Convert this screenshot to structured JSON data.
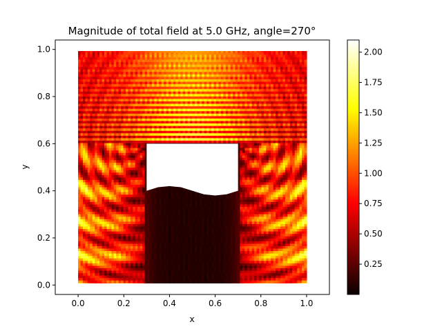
{
  "chart_data": {
    "type": "heatmap",
    "title": "Magnitude of total field at 5.0 GHz, angle=270°",
    "xlabel": "x",
    "ylabel": "y",
    "xlim": [
      -0.1,
      1.1
    ],
    "ylim": [
      -0.04,
      1.04
    ],
    "x_ticks": [
      "0.0",
      "0.2",
      "0.4",
      "0.6",
      "0.8",
      "1.0"
    ],
    "y_ticks": [
      "0.0",
      "0.2",
      "0.4",
      "0.6",
      "0.8",
      "1.0"
    ],
    "field_extent": {
      "x": [
        0.0,
        1.0
      ],
      "y": [
        0.0,
        1.0
      ]
    },
    "colormap": "hot",
    "colorbar": {
      "min": 0.0,
      "max": 2.1,
      "ticks": [
        "0.25",
        "0.50",
        "0.75",
        "1.00",
        "1.25",
        "1.50",
        "1.75",
        "2.00"
      ]
    },
    "scatterer": {
      "x_range": [
        0.3,
        0.7
      ],
      "top_y": 0.6,
      "bottom_profile": [
        {
          "x": 0.3,
          "y": 0.4
        },
        {
          "x": 0.35,
          "y": 0.415
        },
        {
          "x": 0.4,
          "y": 0.42
        },
        {
          "x": 0.45,
          "y": 0.415
        },
        {
          "x": 0.5,
          "y": 0.4
        },
        {
          "x": 0.55,
          "y": 0.385
        },
        {
          "x": 0.6,
          "y": 0.38
        },
        {
          "x": 0.65,
          "y": 0.385
        },
        {
          "x": 0.7,
          "y": 0.4
        }
      ]
    },
    "grid": false,
    "legend": "none"
  }
}
